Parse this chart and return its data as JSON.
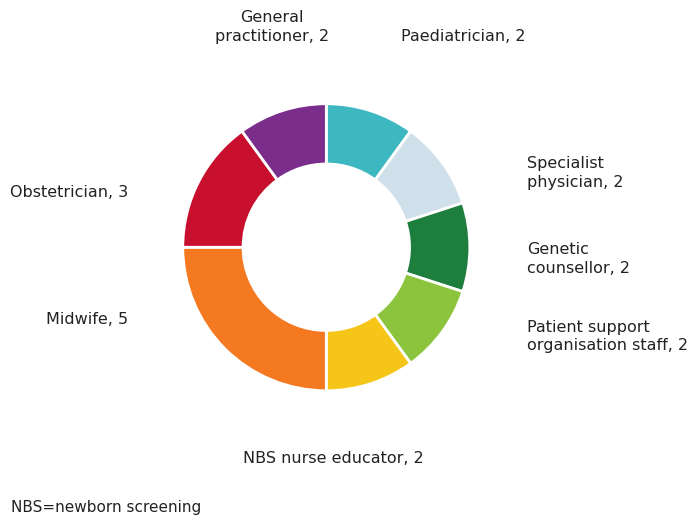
{
  "segments": [
    {
      "label": "Paediatrician, 2",
      "value": 2,
      "color": "#3db8c0"
    },
    {
      "label": "Specialist\nphysician, 2",
      "value": 2,
      "color": "#cfe0ea"
    },
    {
      "label": "Genetic\ncounsellor, 2",
      "value": 2,
      "color": "#1e7e3e"
    },
    {
      "label": "Patient support\norganisation staff, 2",
      "value": 2,
      "color": "#8cc43e"
    },
    {
      "label": "NBS nurse educator, 2",
      "value": 2,
      "color": "#f5c518"
    },
    {
      "label": "Midwife, 5",
      "value": 5,
      "color": "#f47920"
    },
    {
      "label": "Obstetrician, 3",
      "value": 3,
      "color": "#c8102e"
    },
    {
      "label": "General\npractitioner, 2",
      "value": 2,
      "color": "#7b2d8b"
    }
  ],
  "footnote": "NBS=newborn screening",
  "donut_width": 0.42,
  "start_angle": 90,
  "label_fontsize": 11.5,
  "footnote_fontsize": 11,
  "label_color": "#222222"
}
